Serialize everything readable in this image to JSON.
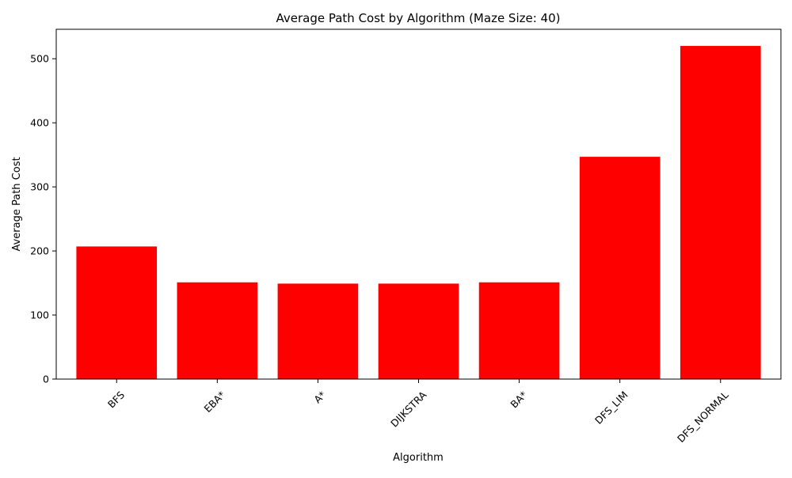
{
  "chart_data": {
    "type": "bar",
    "title": "Average Path Cost by Algorithm (Maze Size: 40)",
    "xlabel": "Algorithm",
    "ylabel": "Average Path Cost",
    "categories": [
      "BFS",
      "EBA*",
      "A*",
      "DIJKSTRA",
      "BA*",
      "DFS_LIM",
      "DFS_NORMAL"
    ],
    "values": [
      207,
      151,
      149,
      149,
      151,
      347,
      520
    ],
    "ylim": [
      0,
      546
    ],
    "yticks": [
      0,
      100,
      200,
      300,
      400,
      500
    ],
    "x_tick_rotation": 45,
    "grid": false,
    "legend": "none",
    "bar_color": "#ff0000"
  }
}
